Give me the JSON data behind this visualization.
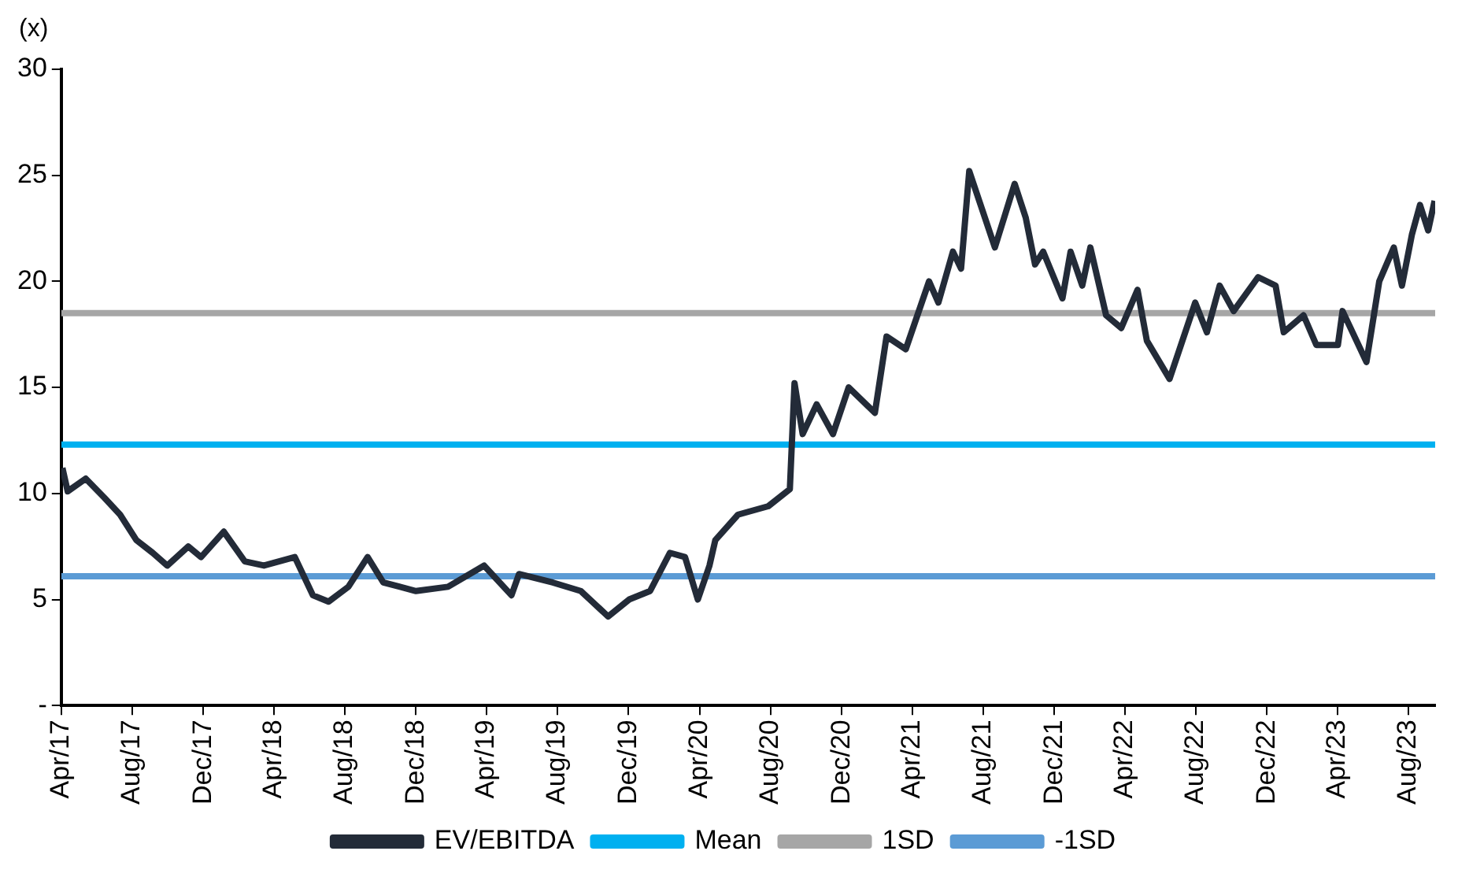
{
  "chart_data": {
    "type": "line",
    "ylabel": "(x)",
    "legend": "bottom",
    "grid": false,
    "line_style": "solid",
    "marker": "none",
    "xlim": [
      "2017-04-01",
      "2023-09-16"
    ],
    "xticks": [
      {
        "value": "2017-04-01",
        "label": "Apr/17"
      },
      {
        "value": "2017-08-01",
        "label": "Aug/17"
      },
      {
        "value": "2017-12-01",
        "label": "Dec/17"
      },
      {
        "value": "2018-04-01",
        "label": "Apr/18"
      },
      {
        "value": "2018-08-01",
        "label": "Aug/18"
      },
      {
        "value": "2018-12-01",
        "label": "Dec/18"
      },
      {
        "value": "2019-04-01",
        "label": "Apr/19"
      },
      {
        "value": "2019-08-01",
        "label": "Aug/19"
      },
      {
        "value": "2019-12-01",
        "label": "Dec/19"
      },
      {
        "value": "2020-04-01",
        "label": "Apr/20"
      },
      {
        "value": "2020-08-01",
        "label": "Aug/20"
      },
      {
        "value": "2020-12-01",
        "label": "Dec/20"
      },
      {
        "value": "2021-04-01",
        "label": "Apr/21"
      },
      {
        "value": "2021-08-01",
        "label": "Aug/21"
      },
      {
        "value": "2021-12-01",
        "label": "Dec/21"
      },
      {
        "value": "2022-04-01",
        "label": "Apr/22"
      },
      {
        "value": "2022-08-01",
        "label": "Aug/22"
      },
      {
        "value": "2022-12-01",
        "label": "Dec/22"
      },
      {
        "value": "2023-04-01",
        "label": "Apr/23"
      },
      {
        "value": "2023-08-01",
        "label": "Aug/23"
      }
    ],
    "ylim": [
      0,
      30
    ],
    "yticks": [
      {
        "value": 0,
        "label": "-"
      },
      5,
      10,
      15,
      20,
      25,
      30
    ],
    "series": [
      {
        "name": "EV/EBITDA",
        "color": "#232b38",
        "x": [
          "2017-04-03",
          "2017-04-12",
          "2017-05-13",
          "2017-06-14",
          "2017-07-11",
          "2017-08-08",
          "2017-09-05",
          "2017-09-30",
          "2017-11-05",
          "2017-11-27",
          "2018-01-05",
          "2018-02-10",
          "2018-03-15",
          "2018-05-07",
          "2018-06-07",
          "2018-07-04",
          "2018-08-07",
          "2018-09-09",
          "2018-10-06",
          "2018-12-01",
          "2019-01-25",
          "2019-03-28",
          "2019-05-14",
          "2019-05-27",
          "2019-07-24",
          "2019-09-10",
          "2019-10-27",
          "2019-12-02",
          "2020-01-07",
          "2020-02-10",
          "2020-03-07",
          "2020-03-29",
          "2020-04-18",
          "2020-04-28",
          "2020-06-06",
          "2020-07-28",
          "2020-09-03",
          "2020-09-11",
          "2020-09-25",
          "2020-10-19",
          "2020-11-16",
          "2020-12-13",
          "2021-01-27",
          "2021-02-16",
          "2021-03-21",
          "2021-04-30",
          "2021-05-16",
          "2021-06-10",
          "2021-06-24",
          "2021-07-08",
          "2021-07-30",
          "2021-08-21",
          "2021-09-24",
          "2021-10-13",
          "2021-10-29",
          "2021-11-12",
          "2021-12-15",
          "2021-12-29",
          "2022-01-18",
          "2022-02-01",
          "2022-02-28",
          "2022-03-26",
          "2022-04-23",
          "2022-05-09",
          "2022-06-17",
          "2022-07-31",
          "2022-08-20",
          "2022-09-11",
          "2022-10-05",
          "2022-11-16",
          "2022-12-16",
          "2022-12-30",
          "2023-02-02",
          "2023-02-24",
          "2023-04-02",
          "2023-04-10",
          "2023-05-21",
          "2023-06-12",
          "2023-07-07",
          "2023-07-21",
          "2023-08-07",
          "2023-08-21",
          "2023-09-04",
          "2023-09-15"
        ],
        "values": [
          11.2,
          10.1,
          10.7,
          9.8,
          9.0,
          7.8,
          7.2,
          6.6,
          7.5,
          7.0,
          8.2,
          6.8,
          6.6,
          7.0,
          5.2,
          4.9,
          5.6,
          7.0,
          5.8,
          5.4,
          5.6,
          6.6,
          5.2,
          6.2,
          5.8,
          5.4,
          4.2,
          5.0,
          5.4,
          7.2,
          7.0,
          5.0,
          6.6,
          7.8,
          9.0,
          9.4,
          10.2,
          15.2,
          12.8,
          14.2,
          12.8,
          15.0,
          13.8,
          17.4,
          16.8,
          20.0,
          19.0,
          21.4,
          20.6,
          25.2,
          23.4,
          21.6,
          24.6,
          23.0,
          20.8,
          21.4,
          19.2,
          21.4,
          19.8,
          21.6,
          18.4,
          17.8,
          19.6,
          17.2,
          15.4,
          19.0,
          17.6,
          19.8,
          18.6,
          20.2,
          19.8,
          17.6,
          18.4,
          17.0,
          17.0,
          18.6,
          16.2,
          20.0,
          21.6,
          19.8,
          22.2,
          23.6,
          22.4,
          23.8
        ]
      },
      {
        "name": "Mean",
        "color": "#00b0f0",
        "x": [
          "2017-04-01",
          "2023-09-16"
        ],
        "values": [
          12.3,
          12.3
        ]
      },
      {
        "name": "1SD",
        "color": "#a6a6a6",
        "x": [
          "2017-04-01",
          "2023-09-16"
        ],
        "values": [
          18.5,
          18.5
        ]
      },
      {
        "name": "-1SD",
        "color": "#5b9bd5",
        "x": [
          "2017-04-01",
          "2023-09-16"
        ],
        "values": [
          6.1,
          6.1
        ]
      }
    ]
  }
}
